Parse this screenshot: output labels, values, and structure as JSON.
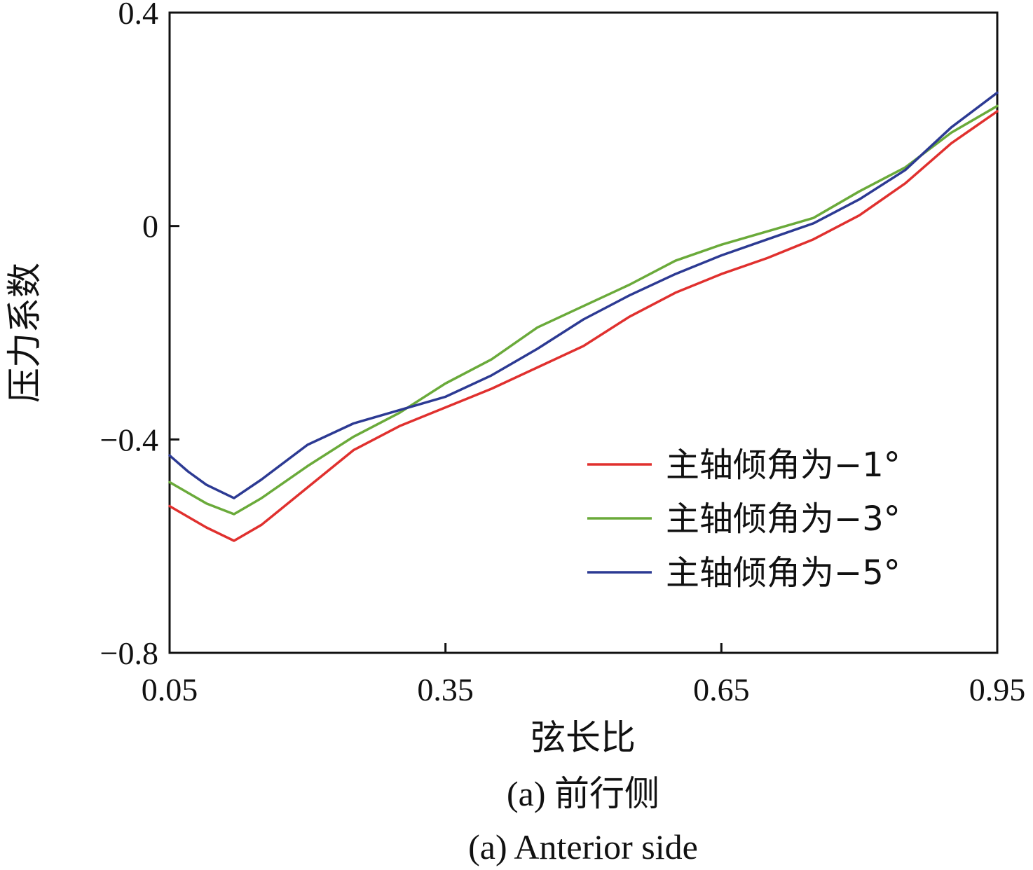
{
  "chart_data": {
    "type": "line",
    "xlabel": "弦长比",
    "ylabel": "压力系数",
    "xlim": [
      0.05,
      0.95
    ],
    "ylim": [
      -0.8,
      0.4
    ],
    "x_ticks": [
      0.05,
      0.35,
      0.65,
      0.95
    ],
    "x_tick_labels": [
      "0.05",
      "0.35",
      "0.65",
      "0.95"
    ],
    "y_ticks": [
      0.4,
      0,
      -0.4,
      -0.8
    ],
    "y_tick_labels": [
      "0.4",
      "0",
      "−0.4",
      "−0.8"
    ],
    "grid": false,
    "legend_position": "bottom-right",
    "x": [
      0.05,
      0.07,
      0.09,
      0.12,
      0.15,
      0.2,
      0.25,
      0.3,
      0.35,
      0.4,
      0.45,
      0.5,
      0.55,
      0.6,
      0.65,
      0.7,
      0.75,
      0.8,
      0.85,
      0.9,
      0.95
    ],
    "series": [
      {
        "name": "主轴倾角为−1°",
        "color": "#e0302e",
        "values": [
          -0.525,
          -0.545,
          -0.565,
          -0.59,
          -0.56,
          -0.49,
          -0.42,
          -0.375,
          -0.34,
          -0.305,
          -0.265,
          -0.225,
          -0.17,
          -0.125,
          -0.09,
          -0.06,
          -0.025,
          0.02,
          0.08,
          0.155,
          0.215
        ]
      },
      {
        "name": "主轴倾角为−3°",
        "color": "#6aaa3a",
        "values": [
          -0.48,
          -0.5,
          -0.52,
          -0.54,
          -0.51,
          -0.45,
          -0.395,
          -0.35,
          -0.295,
          -0.25,
          -0.19,
          -0.15,
          -0.11,
          -0.065,
          -0.035,
          -0.01,
          0.015,
          0.065,
          0.11,
          0.175,
          0.225
        ]
      },
      {
        "name": "主轴倾角为−5°",
        "color": "#2c3a93",
        "values": [
          -0.43,
          -0.46,
          -0.485,
          -0.51,
          -0.475,
          -0.41,
          -0.37,
          -0.345,
          -0.32,
          -0.28,
          -0.23,
          -0.175,
          -0.13,
          -0.09,
          -0.055,
          -0.025,
          0.005,
          0.05,
          0.105,
          0.185,
          0.25
        ]
      }
    ]
  },
  "caption_zh": "(a)  前行侧",
  "caption_en": "(a)  Anterior side"
}
